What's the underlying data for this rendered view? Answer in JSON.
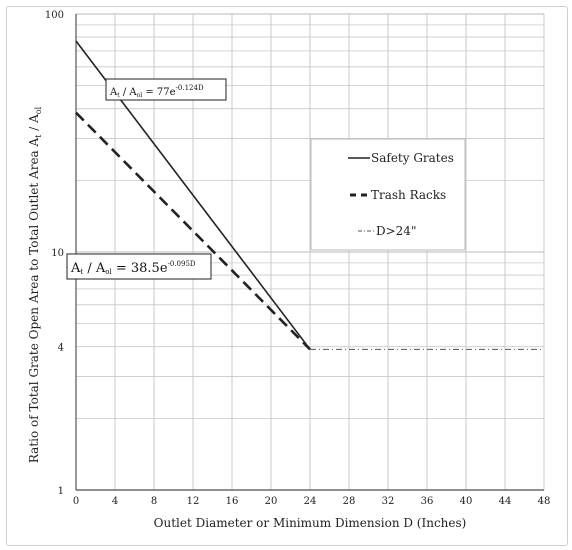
{
  "chart_data": {
    "type": "line",
    "title": "",
    "xlabel": "Outlet Diameter or Minimum Dimension D (Inches)",
    "ylabel": "Ratio of Total Grate Open Area to Total Outlet Area A_t / A_ol",
    "x_ticks": [
      "0",
      "4",
      "8",
      "12",
      "16",
      "20",
      "24",
      "28",
      "32",
      "36",
      "40",
      "44",
      "48"
    ],
    "y_ticks": [
      "1",
      "4",
      "10",
      "100"
    ],
    "xlim": [
      0,
      48
    ],
    "ylim": [
      1,
      100
    ],
    "y_scale": "log",
    "grid": true,
    "legend_position": "right",
    "series": [
      {
        "name": "Safety Grates",
        "style": "solid",
        "x": [
          0,
          24
        ],
        "y": [
          77,
          3.9
        ]
      },
      {
        "name": "Trash Racks",
        "style": "dashed",
        "x": [
          0,
          24
        ],
        "y": [
          38.5,
          3.9
        ]
      },
      {
        "name": "D>24\"",
        "style": "dash-dot",
        "x": [
          24,
          48
        ],
        "y": [
          3.9,
          3.9
        ]
      }
    ],
    "annotations": [
      {
        "id": "safety-equation",
        "lhs_top": "A",
        "lhs_top_sub": "t",
        "slash": " / ",
        "lhs_bot": "A",
        "lhs_bot_sub": "ol",
        "rhs": " = 77e",
        "exponent": "-0.124D"
      },
      {
        "id": "trash-equation",
        "lhs_top": "A",
        "lhs_top_sub": "t",
        "slash": " / ",
        "lhs_bot": "A",
        "lhs_bot_sub": "ol",
        "rhs": " = 38.5e",
        "exponent": "-0.095D"
      }
    ],
    "colors": {
      "line": "#222222",
      "grid": "#c8c8c8",
      "axis": "#555555"
    }
  }
}
